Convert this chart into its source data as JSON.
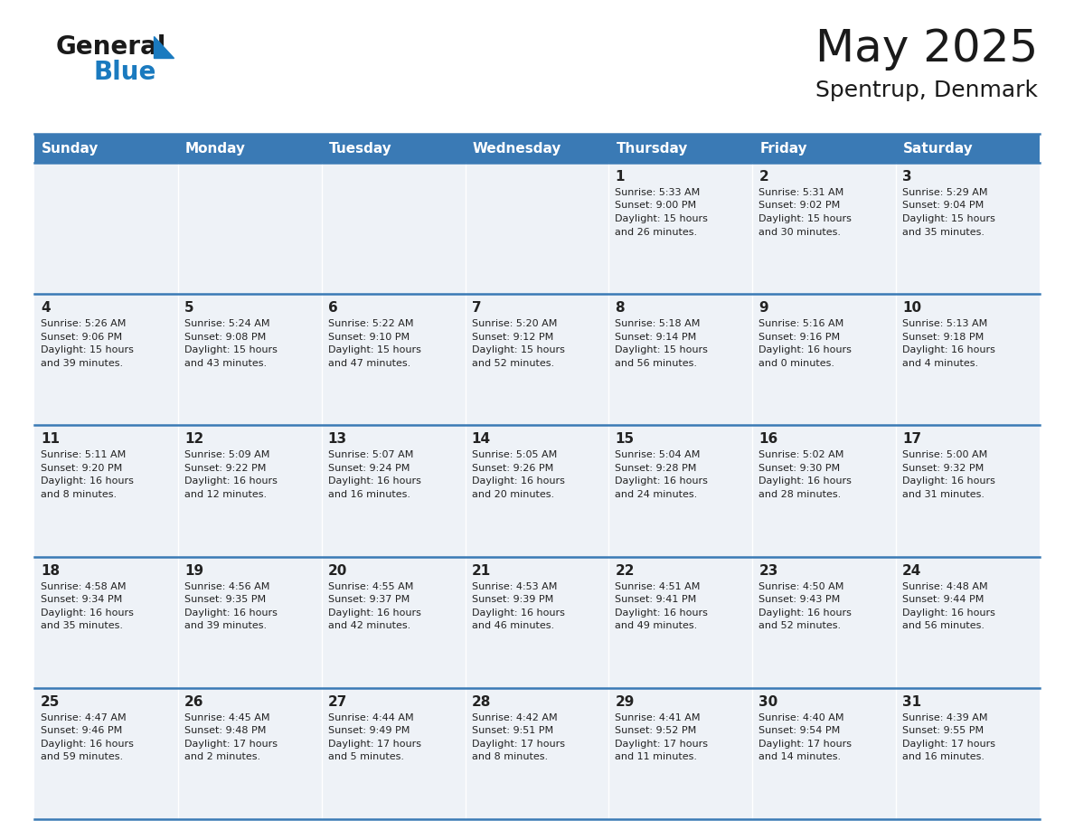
{
  "title": "May 2025",
  "subtitle": "Spentrup, Denmark",
  "header_color": "#3a7ab5",
  "header_text_color": "#ffffff",
  "cell_bg_color": "#eef2f7",
  "border_color": "#3a7ab5",
  "days_of_week": [
    "Sunday",
    "Monday",
    "Tuesday",
    "Wednesday",
    "Thursday",
    "Friday",
    "Saturday"
  ],
  "weeks": [
    [
      {
        "day": "",
        "sunrise": "",
        "sunset": "",
        "daylight": ""
      },
      {
        "day": "",
        "sunrise": "",
        "sunset": "",
        "daylight": ""
      },
      {
        "day": "",
        "sunrise": "",
        "sunset": "",
        "daylight": ""
      },
      {
        "day": "",
        "sunrise": "",
        "sunset": "",
        "daylight": ""
      },
      {
        "day": "1",
        "sunrise": "5:33 AM",
        "sunset": "9:00 PM",
        "daylight": "15 hours\nand 26 minutes."
      },
      {
        "day": "2",
        "sunrise": "5:31 AM",
        "sunset": "9:02 PM",
        "daylight": "15 hours\nand 30 minutes."
      },
      {
        "day": "3",
        "sunrise": "5:29 AM",
        "sunset": "9:04 PM",
        "daylight": "15 hours\nand 35 minutes."
      }
    ],
    [
      {
        "day": "4",
        "sunrise": "5:26 AM",
        "sunset": "9:06 PM",
        "daylight": "15 hours\nand 39 minutes."
      },
      {
        "day": "5",
        "sunrise": "5:24 AM",
        "sunset": "9:08 PM",
        "daylight": "15 hours\nand 43 minutes."
      },
      {
        "day": "6",
        "sunrise": "5:22 AM",
        "sunset": "9:10 PM",
        "daylight": "15 hours\nand 47 minutes."
      },
      {
        "day": "7",
        "sunrise": "5:20 AM",
        "sunset": "9:12 PM",
        "daylight": "15 hours\nand 52 minutes."
      },
      {
        "day": "8",
        "sunrise": "5:18 AM",
        "sunset": "9:14 PM",
        "daylight": "15 hours\nand 56 minutes."
      },
      {
        "day": "9",
        "sunrise": "5:16 AM",
        "sunset": "9:16 PM",
        "daylight": "16 hours\nand 0 minutes."
      },
      {
        "day": "10",
        "sunrise": "5:13 AM",
        "sunset": "9:18 PM",
        "daylight": "16 hours\nand 4 minutes."
      }
    ],
    [
      {
        "day": "11",
        "sunrise": "5:11 AM",
        "sunset": "9:20 PM",
        "daylight": "16 hours\nand 8 minutes."
      },
      {
        "day": "12",
        "sunrise": "5:09 AM",
        "sunset": "9:22 PM",
        "daylight": "16 hours\nand 12 minutes."
      },
      {
        "day": "13",
        "sunrise": "5:07 AM",
        "sunset": "9:24 PM",
        "daylight": "16 hours\nand 16 minutes."
      },
      {
        "day": "14",
        "sunrise": "5:05 AM",
        "sunset": "9:26 PM",
        "daylight": "16 hours\nand 20 minutes."
      },
      {
        "day": "15",
        "sunrise": "5:04 AM",
        "sunset": "9:28 PM",
        "daylight": "16 hours\nand 24 minutes."
      },
      {
        "day": "16",
        "sunrise": "5:02 AM",
        "sunset": "9:30 PM",
        "daylight": "16 hours\nand 28 minutes."
      },
      {
        "day": "17",
        "sunrise": "5:00 AM",
        "sunset": "9:32 PM",
        "daylight": "16 hours\nand 31 minutes."
      }
    ],
    [
      {
        "day": "18",
        "sunrise": "4:58 AM",
        "sunset": "9:34 PM",
        "daylight": "16 hours\nand 35 minutes."
      },
      {
        "day": "19",
        "sunrise": "4:56 AM",
        "sunset": "9:35 PM",
        "daylight": "16 hours\nand 39 minutes."
      },
      {
        "day": "20",
        "sunrise": "4:55 AM",
        "sunset": "9:37 PM",
        "daylight": "16 hours\nand 42 minutes."
      },
      {
        "day": "21",
        "sunrise": "4:53 AM",
        "sunset": "9:39 PM",
        "daylight": "16 hours\nand 46 minutes."
      },
      {
        "day": "22",
        "sunrise": "4:51 AM",
        "sunset": "9:41 PM",
        "daylight": "16 hours\nand 49 minutes."
      },
      {
        "day": "23",
        "sunrise": "4:50 AM",
        "sunset": "9:43 PM",
        "daylight": "16 hours\nand 52 minutes."
      },
      {
        "day": "24",
        "sunrise": "4:48 AM",
        "sunset": "9:44 PM",
        "daylight": "16 hours\nand 56 minutes."
      }
    ],
    [
      {
        "day": "25",
        "sunrise": "4:47 AM",
        "sunset": "9:46 PM",
        "daylight": "16 hours\nand 59 minutes."
      },
      {
        "day": "26",
        "sunrise": "4:45 AM",
        "sunset": "9:48 PM",
        "daylight": "17 hours\nand 2 minutes."
      },
      {
        "day": "27",
        "sunrise": "4:44 AM",
        "sunset": "9:49 PM",
        "daylight": "17 hours\nand 5 minutes."
      },
      {
        "day": "28",
        "sunrise": "4:42 AM",
        "sunset": "9:51 PM",
        "daylight": "17 hours\nand 8 minutes."
      },
      {
        "day": "29",
        "sunrise": "4:41 AM",
        "sunset": "9:52 PM",
        "daylight": "17 hours\nand 11 minutes."
      },
      {
        "day": "30",
        "sunrise": "4:40 AM",
        "sunset": "9:54 PM",
        "daylight": "17 hours\nand 14 minutes."
      },
      {
        "day": "31",
        "sunrise": "4:39 AM",
        "sunset": "9:55 PM",
        "daylight": "17 hours\nand 16 minutes."
      }
    ]
  ],
  "logo_general_color": "#1a1a1a",
  "logo_blue_color": "#1a7abf",
  "logo_triangle_color": "#1a7abf",
  "title_fontsize": 36,
  "subtitle_fontsize": 18,
  "dow_fontsize": 11,
  "day_num_fontsize": 11,
  "cell_text_fontsize": 8,
  "fig_width": 11.88,
  "fig_height": 9.18,
  "fig_dpi": 100
}
